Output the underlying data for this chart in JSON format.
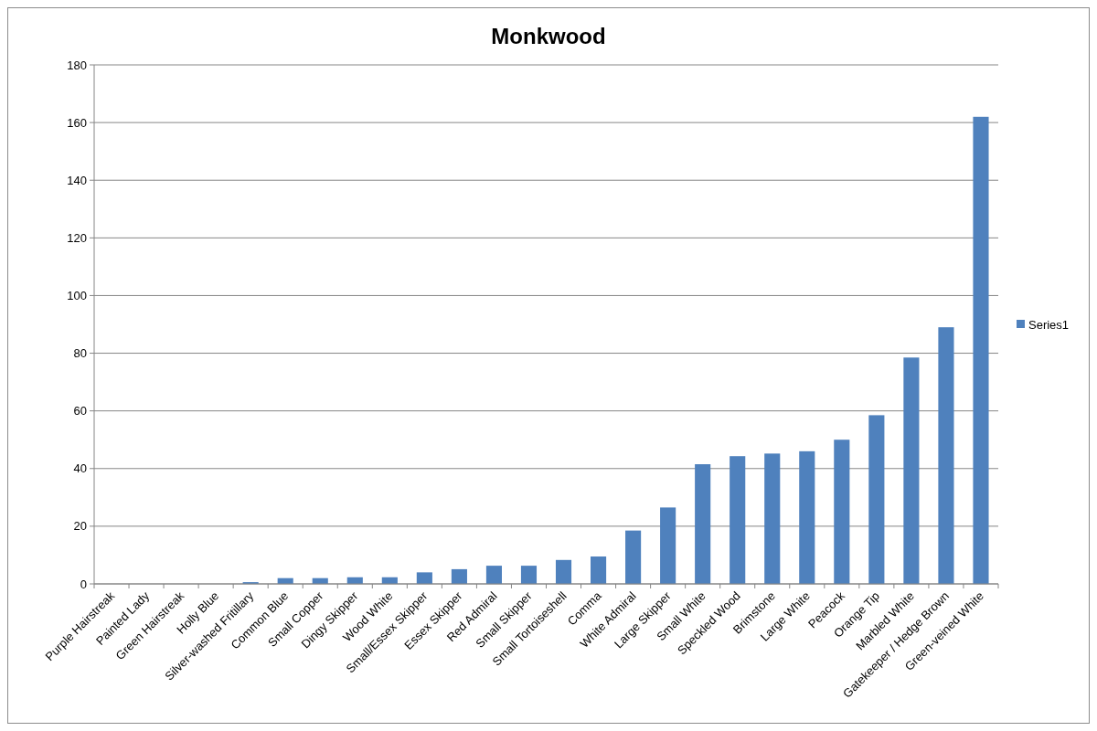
{
  "chart_data": {
    "type": "bar",
    "title": "Monkwood",
    "categories": [
      "Purple Hairstreak",
      "Painted Lady",
      "Green Hairstreak",
      "Holly Blue",
      "Silver-washed Fritillary",
      "Common Blue",
      "Small Copper",
      "Dingy Skipper",
      "Wood White",
      "Small/Essex Skipper",
      "Essex Skipper",
      "Red Admiral",
      "Small Skipper",
      "Small Tortoiseshell",
      "Comma",
      "White Admiral",
      "Large Skipper",
      "Small White",
      "Speckled Wood",
      "Brimstone",
      "Large White",
      "Peacock",
      "Orange Tip",
      "Marbled White",
      "Gatekeeper / Hedge Brown",
      "Green-veined White"
    ],
    "series": [
      {
        "name": "Series1",
        "color": "#4f81bd",
        "values": [
          0,
          0,
          0,
          0,
          0.6,
          2,
          2,
          2.3,
          2.3,
          4,
          5.1,
          6.3,
          6.3,
          8.3,
          9.5,
          18.5,
          26.5,
          41.5,
          44.3,
          45.2,
          46,
          50,
          58.5,
          78.5,
          89,
          162
        ]
      }
    ],
    "ylim": [
      0,
      180
    ],
    "yticks": [
      0,
      20,
      40,
      60,
      80,
      100,
      120,
      140,
      160,
      180
    ],
    "grid": "y",
    "legend": "right"
  }
}
